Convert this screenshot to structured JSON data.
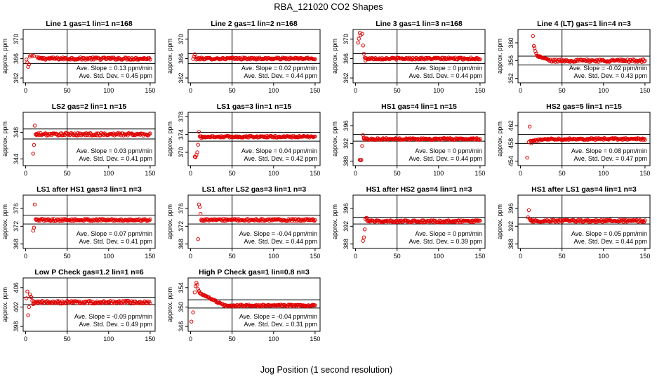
{
  "figure": {
    "title": "RBA_121020  CO2 Shapes",
    "xlabel": "Jog Position (1 second resolution)"
  },
  "style": {
    "point_color": "#e00000",
    "axis_color": "#000000"
  },
  "chart_data": [
    {
      "type": "scatter",
      "title": "Line 1 gas=1 lin=1 n=168",
      "ylabel": "approx. ppm",
      "xlim": [
        -3,
        156
      ],
      "ylim": [
        361,
        372
      ],
      "yticks": [
        362,
        366,
        370
      ],
      "xticks": [
        0,
        50,
        100,
        150
      ],
      "hline": [
        365,
        367
      ],
      "vline": 50,
      "series": [
        {
          "points": [
            [
              1,
              365.8
            ],
            [
              2,
              365.2
            ],
            [
              3,
              364.3
            ],
            [
              4,
              364.8
            ],
            [
              5,
              366.4
            ],
            [
              6,
              366.7
            ],
            [
              8,
              366.6
            ],
            [
              10,
              366.5
            ],
            [
              14,
              366.3
            ],
            [
              20,
              366.1
            ]
          ],
          "baseline": {
            "from": 15,
            "to": 150,
            "y": 366.0,
            "noise": 0.25
          }
        }
      ],
      "annotations": [
        "Ave. Slope = 0.13 ppm/min",
        "Ave. Std. Dev. = 0.45 ppm"
      ]
    },
    {
      "type": "scatter",
      "title": "Line 2 gas=1 lin=2 n=168",
      "ylabel": "approx. ppm",
      "xlim": [
        -3,
        156
      ],
      "ylim": [
        361,
        372
      ],
      "yticks": [
        362,
        366,
        370
      ],
      "xticks": [
        0,
        50,
        100,
        150
      ],
      "hline": [
        365,
        367
      ],
      "vline": 50,
      "series": [
        {
          "points": [
            [
              3,
              365.9
            ],
            [
              4,
              366.4
            ],
            [
              5,
              366.9
            ],
            [
              6,
              366.4
            ],
            [
              7,
              365.8
            ],
            [
              9,
              365.9
            ],
            [
              12,
              366.0
            ]
          ],
          "baseline": {
            "from": 8,
            "to": 150,
            "y": 366.0,
            "noise": 0.2
          }
        }
      ],
      "annotations": [
        "Ave. Slope = 0.02 ppm/min",
        "Ave. Std. Dev. = 0.44 ppm"
      ]
    },
    {
      "type": "scatter",
      "title": "Line 3 gas=1 lin=3 n=168",
      "ylabel": "approx. ppm",
      "xlim": [
        -3,
        156
      ],
      "ylim": [
        361,
        372
      ],
      "yticks": [
        362,
        366,
        370
      ],
      "xticks": [
        0,
        50,
        100,
        150
      ],
      "hline": [
        365,
        367
      ],
      "vline": 50,
      "series": [
        {
          "points": [
            [
              3,
              369.3
            ],
            [
              4,
              370.1
            ],
            [
              5,
              371.3
            ],
            [
              6,
              370.8
            ],
            [
              8,
              371.1
            ],
            [
              9,
              368.7
            ],
            [
              10,
              367.0
            ],
            [
              11,
              366.2
            ],
            [
              12,
              365.6
            ]
          ],
          "baseline": {
            "from": 12,
            "to": 150,
            "y": 366.0,
            "noise": 0.2
          }
        }
      ],
      "annotations": [
        "Ave. Slope = 0 ppm/min",
        "Ave. Std. Dev. = 0.44 ppm"
      ]
    },
    {
      "type": "scatter",
      "title": "Line 4 (LT) gas=1 lin=4 n=3",
      "ylabel": "approx. ppm",
      "xlim": [
        -3,
        156
      ],
      "ylim": [
        351,
        363
      ],
      "yticks": [
        352,
        356,
        360
      ],
      "xticks": [
        0,
        50,
        100,
        150
      ],
      "hline": [
        355,
        357
      ],
      "vline": 50,
      "series": [
        {
          "points": [
            [
              15,
              361.5
            ],
            [
              16,
              359.3
            ],
            [
              17,
              358.8
            ],
            [
              18,
              358.1
            ],
            [
              19,
              357.6
            ],
            [
              20,
              357.1
            ],
            [
              22,
              356.8
            ]
          ],
          "decay": {
            "from": 20,
            "to": 35,
            "y0": 357.1,
            "y1": 356.1
          },
          "baseline": {
            "from": 35,
            "to": 150,
            "y": 356.0,
            "noise": 0.3
          }
        }
      ],
      "annotations": [
        "Ave. Slope = -0.02 ppm/min",
        "Ave. Std. Dev. = 0.43 ppm"
      ]
    },
    {
      "type": "scatter",
      "title": "LS2 gas=2 lin=1 n=15",
      "ylabel": "approx. ppm",
      "xlim": [
        -3,
        156
      ],
      "ylim": [
        343,
        351
      ],
      "yticks": [
        344,
        348
      ],
      "xticks": [
        0,
        50,
        100,
        150
      ],
      "hline": [
        347,
        348.5
      ],
      "vline": 50,
      "series": [
        {
          "points": [
            [
              9,
              344.8
            ],
            [
              10,
              346.1
            ],
            [
              11,
              349.0
            ],
            [
              12,
              347.7
            ],
            [
              13,
              347.6
            ]
          ],
          "baseline": {
            "from": 13,
            "to": 150,
            "y": 347.7,
            "noise": 0.2
          }
        }
      ],
      "annotations": [
        "Ave. Slope = 0.03 ppm/min",
        "Ave. Std. Dev. = 0.41 ppm"
      ]
    },
    {
      "type": "scatter",
      "title": "LS1 gas=3 lin=1 n=15",
      "ylabel": "approx. ppm",
      "xlim": [
        -3,
        156
      ],
      "ylim": [
        367,
        379
      ],
      "yticks": [
        370,
        374,
        378
      ],
      "xticks": [
        0,
        50,
        100,
        150
      ],
      "hline": [
        372.5,
        374.5
      ],
      "vline": 50,
      "series": [
        {
          "points": [
            [
              5,
              369.0
            ],
            [
              6,
              368.9
            ],
            [
              7,
              369.4
            ],
            [
              8,
              370.0
            ],
            [
              9,
              371.7
            ],
            [
              10,
              374.6
            ],
            [
              11,
              373.6
            ],
            [
              13,
              373.2
            ]
          ],
          "baseline": {
            "from": 12,
            "to": 150,
            "y": 373.5,
            "noise": 0.2
          }
        }
      ],
      "annotations": [
        "Ave. Slope = 0.04 ppm/min",
        "Ave. Std. Dev. = 0.42 ppm"
      ]
    },
    {
      "type": "scatter",
      "title": "HS1 gas=4 lin=1 n=15",
      "ylabel": "approx. ppm",
      "xlim": [
        -3,
        156
      ],
      "ylim": [
        387,
        399
      ],
      "yticks": [
        388,
        392,
        396
      ],
      "xticks": [
        0,
        50,
        100,
        150
      ],
      "hline": [
        392.5,
        394
      ],
      "vline": 50,
      "series": [
        {
          "points": [
            [
              5,
              388.3
            ],
            [
              6,
              388.2
            ],
            [
              7,
              388.3
            ],
            [
              8,
              391.4
            ],
            [
              9,
              393.9
            ],
            [
              10,
              393.3
            ]
          ],
          "baseline": {
            "from": 10,
            "to": 150,
            "y": 393.0,
            "noise": 0.2
          }
        }
      ],
      "annotations": [
        "Ave. Slope = 0 ppm/min",
        "Ave. Std. Dev. = 0.44 ppm"
      ]
    },
    {
      "type": "scatter",
      "title": "HS2 gas=5 lin=1 n=15",
      "ylabel": "approx. ppm",
      "xlim": [
        -3,
        156
      ],
      "ylim": [
        453,
        465
      ],
      "yticks": [
        454,
        458,
        462
      ],
      "xticks": [
        0,
        50,
        100,
        150
      ],
      "hline": [
        458,
        460
      ],
      "vline": 50,
      "series": [
        {
          "points": [
            [
              8,
              454.8
            ],
            [
              10,
              458.3
            ],
            [
              11,
              461.8
            ],
            [
              12,
              458.6
            ],
            [
              13,
              458.0
            ]
          ],
          "decay": {
            "from": 13,
            "to": 30,
            "y0": 458.5,
            "y1": 459.0
          },
          "baseline": {
            "from": 30,
            "to": 150,
            "y": 459.0,
            "noise": 0.2
          }
        }
      ],
      "annotations": [
        "Ave. Slope = 0.08 ppm/min",
        "Ave. Std. Dev. = 0.47 ppm"
      ]
    },
    {
      "type": "scatter",
      "title": "LS1 after HS1 gas=3 lin=1 n=3",
      "ylabel": "approx. ppm",
      "xlim": [
        -3,
        156
      ],
      "ylim": [
        367,
        379
      ],
      "yticks": [
        368,
        372,
        376
      ],
      "xticks": [
        0,
        50,
        100,
        150
      ],
      "hline": [
        372.5,
        374.5
      ],
      "vline": 50,
      "series": [
        {
          "points": [
            [
              9,
              371.0
            ],
            [
              10,
              371.7
            ],
            [
              11,
              376.9
            ],
            [
              12,
              373.6
            ],
            [
              13,
              373.4
            ]
          ],
          "baseline": {
            "from": 13,
            "to": 150,
            "y": 373.4,
            "noise": 0.25
          }
        }
      ],
      "annotations": [
        "Ave. Slope = 0.07 ppm/min",
        "Ave. Std. Dev. = 0.41 ppm"
      ]
    },
    {
      "type": "scatter",
      "title": "LS1 after LS2 gas=3 lin=1 n=3",
      "ylabel": "approx. ppm",
      "xlim": [
        -3,
        156
      ],
      "ylim": [
        367,
        379
      ],
      "yticks": [
        368,
        372,
        376
      ],
      "xticks": [
        0,
        50,
        100,
        150
      ],
      "hline": [
        372.5,
        374.5
      ],
      "vline": 50,
      "series": [
        {
          "points": [
            [
              9,
              369.1
            ],
            [
              10,
              376.9
            ],
            [
              11,
              376.3
            ],
            [
              12,
              374.8
            ],
            [
              13,
              373.3
            ]
          ],
          "baseline": {
            "from": 13,
            "to": 150,
            "y": 373.4,
            "noise": 0.25
          }
        }
      ],
      "annotations": [
        "Ave. Slope = -0.04 ppm/min",
        "Ave. Std. Dev. = 0.44 ppm"
      ]
    },
    {
      "type": "scatter",
      "title": "HS1 after HS2 gas=4 lin=1 n=3",
      "ylabel": "approx. ppm",
      "xlim": [
        -3,
        156
      ],
      "ylim": [
        387,
        399
      ],
      "yticks": [
        388,
        392,
        396
      ],
      "xticks": [
        0,
        50,
        100,
        150
      ],
      "hline": [
        392.5,
        394
      ],
      "vline": 50,
      "series": [
        {
          "points": [
            [
              9,
              388.7
            ],
            [
              10,
              389.5
            ],
            [
              11,
              391.3
            ],
            [
              12,
              393.6
            ],
            [
              13,
              393.9
            ],
            [
              14,
              393.8
            ]
          ],
          "baseline": {
            "from": 14,
            "to": 150,
            "y": 393.1,
            "noise": 0.25
          }
        }
      ],
      "annotations": [
        "Ave. Slope = 0 ppm/min",
        "Ave. Std. Dev. = 0.39 ppm"
      ]
    },
    {
      "type": "scatter",
      "title": "HS1 after LS1 gas=4 lin=1 n=3",
      "ylabel": "approx. ppm",
      "xlim": [
        -3,
        156
      ],
      "ylim": [
        387,
        399
      ],
      "yticks": [
        388,
        392,
        396
      ],
      "xticks": [
        0,
        50,
        100,
        150
      ],
      "hline": [
        392.5,
        394
      ],
      "vline": 50,
      "series": [
        {
          "points": [
            [
              9,
              394.0
            ],
            [
              10,
              395.6
            ],
            [
              11,
              393.7
            ],
            [
              13,
              393.2
            ]
          ],
          "baseline": {
            "from": 12,
            "to": 150,
            "y": 393.2,
            "noise": 0.25
          }
        }
      ],
      "annotations": [
        "Ave. Slope = 0.05 ppm/min",
        "Ave. Std. Dev. = 0.44 ppm"
      ]
    },
    {
      "type": "scatter",
      "title": "Low P Check gas=1.2 lin=1 n=6",
      "ylabel": "approx. ppm",
      "xlim": [
        -3,
        156
      ],
      "ylim": [
        397,
        408
      ],
      "yticks": [
        398,
        402,
        406
      ],
      "xticks": [
        0,
        50,
        100,
        150
      ],
      "hline": [
        402.5,
        404
      ],
      "vline": 50,
      "series": [
        {
          "points": [
            [
              1,
              403.8
            ],
            [
              2,
              405.2
            ],
            [
              3,
              400.3
            ],
            [
              4,
              402.0
            ],
            [
              5,
              404.6
            ],
            [
              6,
              404.1
            ],
            [
              7,
              404.0
            ],
            [
              8,
              403.3
            ],
            [
              9,
              402.6
            ],
            [
              10,
              402.7
            ]
          ],
          "baseline": {
            "from": 10,
            "to": 150,
            "y": 403.0,
            "noise": 0.3
          }
        }
      ],
      "annotations": [
        "Ave. Slope = -0.09 ppm/min",
        "Ave. Std. Dev. = 0.49 ppm"
      ]
    },
    {
      "type": "scatter",
      "title": "High P Check gas=1 lin=0.8 n=3",
      "ylabel": "approx. ppm",
      "xlim": [
        -3,
        156
      ],
      "ylim": [
        345,
        356
      ],
      "yticks": [
        346,
        350,
        354
      ],
      "xticks": [
        0,
        50,
        100,
        150
      ],
      "hline": [
        349.8,
        351.5
      ],
      "vline": 50,
      "series": [
        {
          "points": [
            [
              1,
              347.0
            ],
            [
              3,
              348.9
            ],
            [
              5,
              353.0
            ],
            [
              6,
              354.3
            ],
            [
              7,
              355.0
            ],
            [
              8,
              354.6
            ],
            [
              9,
              353.7
            ],
            [
              10,
              353.3
            ],
            [
              11,
              352.9
            ]
          ],
          "decay": {
            "from": 11,
            "to": 40,
            "y0": 352.8,
            "y1": 350.4
          },
          "baseline": {
            "from": 40,
            "to": 150,
            "y": 350.3,
            "noise": 0.2
          }
        }
      ],
      "annotations": [
        "Ave. Slope = -0.04 ppm/min",
        "Ave. Std. Dev. = 0.31 ppm"
      ]
    }
  ]
}
